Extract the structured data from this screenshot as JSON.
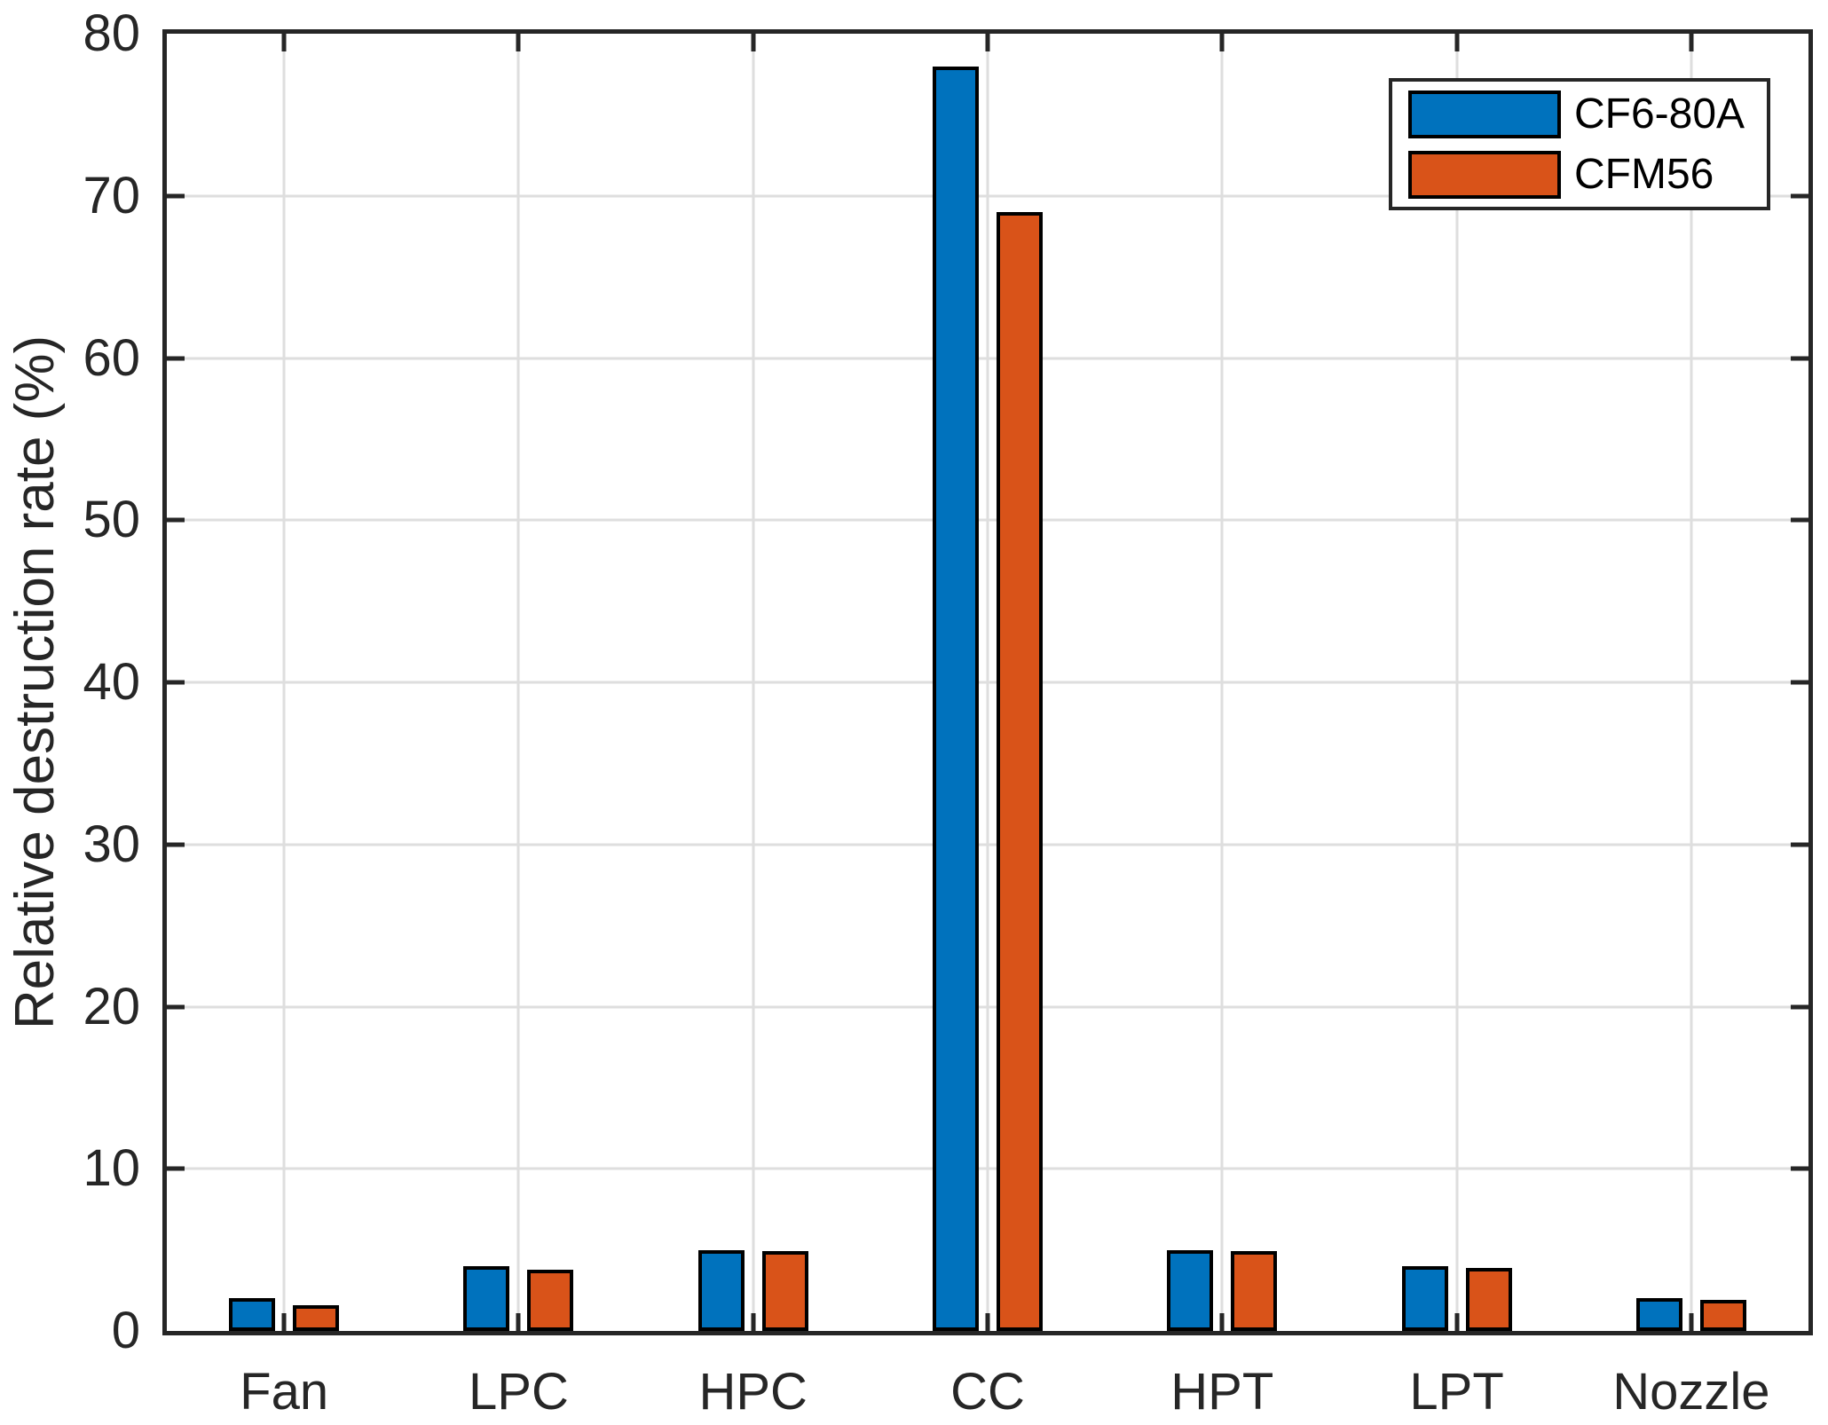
{
  "chart_data": {
    "type": "bar",
    "title": "",
    "xlabel": "",
    "ylabel": "Relative destruction rate (%)",
    "categories": [
      "Fan",
      "LPC",
      "HPC",
      "CC",
      "HPT",
      "LPT",
      "Nozzle"
    ],
    "series": [
      {
        "name": "CF6-80A",
        "color": "#0072BD",
        "values": [
          2,
          4,
          5,
          78,
          5,
          4,
          2
        ]
      },
      {
        "name": "CFM56",
        "color": "#D95319",
        "values": [
          1.6,
          3.8,
          4.9,
          69,
          4.9,
          3.9,
          1.9
        ]
      }
    ],
    "ylim": [
      0,
      80
    ],
    "yticks": [
      0,
      10,
      20,
      30,
      40,
      50,
      60,
      70,
      80
    ],
    "grid": "on",
    "legend_position": "top-right",
    "bar_edge_color": "#000000",
    "axis_color": "#262626",
    "grid_color": "#DEDEDE",
    "background_color": "#FFFFFF"
  }
}
